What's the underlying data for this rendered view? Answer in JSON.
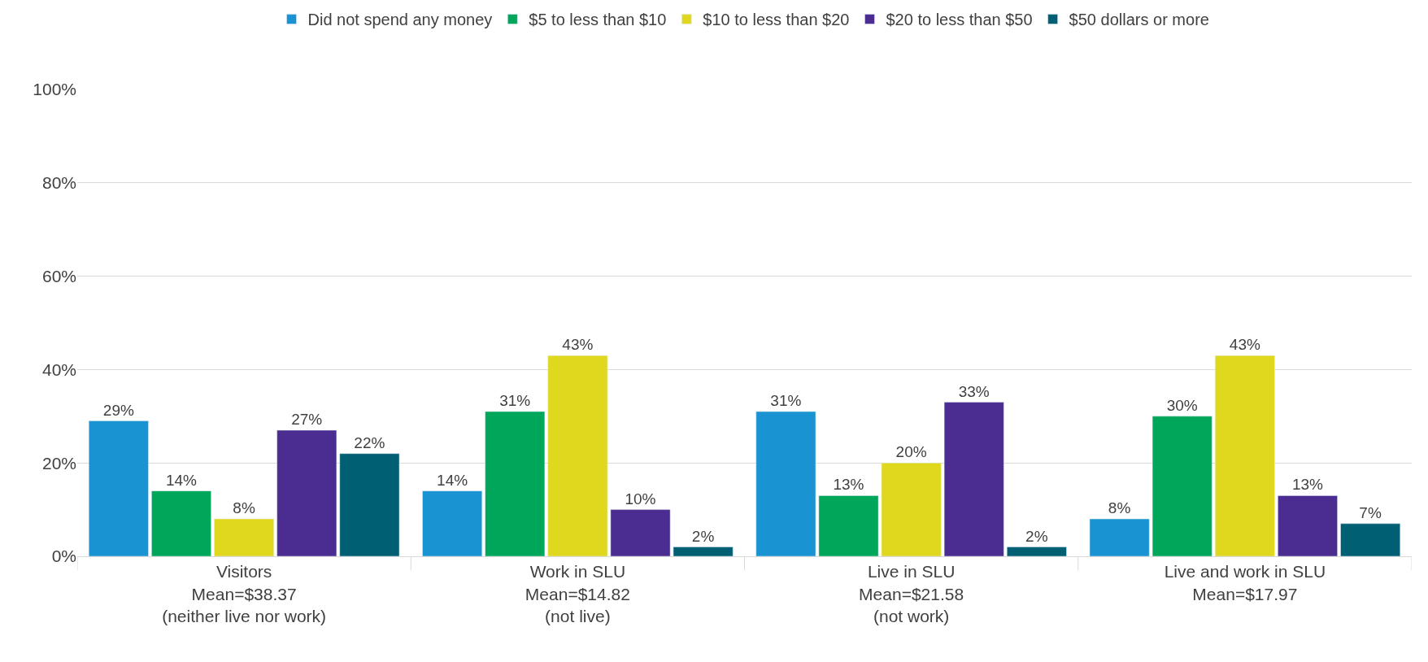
{
  "chart_data": {
    "type": "bar",
    "categories": [
      "Visitors\nMean=$38.37\n(neither live nor work)",
      "Work in SLU\nMean=$14.82\n(not live)",
      "Live in SLU\nMean=$21.58\n(not work)",
      "Live and work in SLU\nMean=$17.97"
    ],
    "series": [
      {
        "name": "Did not spend any money",
        "color": "#1a93d3",
        "values": [
          29,
          14,
          31,
          8
        ],
        "value_labels": [
          "29%",
          "14%",
          "31%",
          "8%"
        ]
      },
      {
        "name": "$5 to less than $10",
        "color": "#00a65a",
        "values": [
          14,
          31,
          13,
          30
        ],
        "value_labels": [
          "14%",
          "31%",
          "13%",
          "30%"
        ]
      },
      {
        "name": "$10 to less than $20",
        "color": "#e0d81e",
        "values": [
          8,
          43,
          20,
          43
        ],
        "value_labels": [
          "8%",
          "43%",
          "20%",
          "43%"
        ]
      },
      {
        "name": "$20 to less than $50",
        "color": "#4b2c90",
        "values": [
          27,
          10,
          33,
          13
        ],
        "value_labels": [
          "27%",
          "10%",
          "33%",
          "13%"
        ]
      },
      {
        "name": "$50 dollars or more",
        "color": "#005f73",
        "values": [
          22,
          2,
          2,
          7
        ],
        "value_labels": [
          "22%",
          "2%",
          "2%",
          "7%"
        ]
      }
    ],
    "ylim": [
      0,
      100
    ],
    "yticks": [
      {
        "value": 0,
        "label": "0%"
      },
      {
        "value": 20,
        "label": "20%"
      },
      {
        "value": 40,
        "label": "40%"
      },
      {
        "value": 60,
        "label": "60%"
      },
      {
        "value": 80,
        "label": "80%"
      },
      {
        "value": 100,
        "label": "100%"
      }
    ],
    "grid": "y",
    "legend": "top"
  }
}
